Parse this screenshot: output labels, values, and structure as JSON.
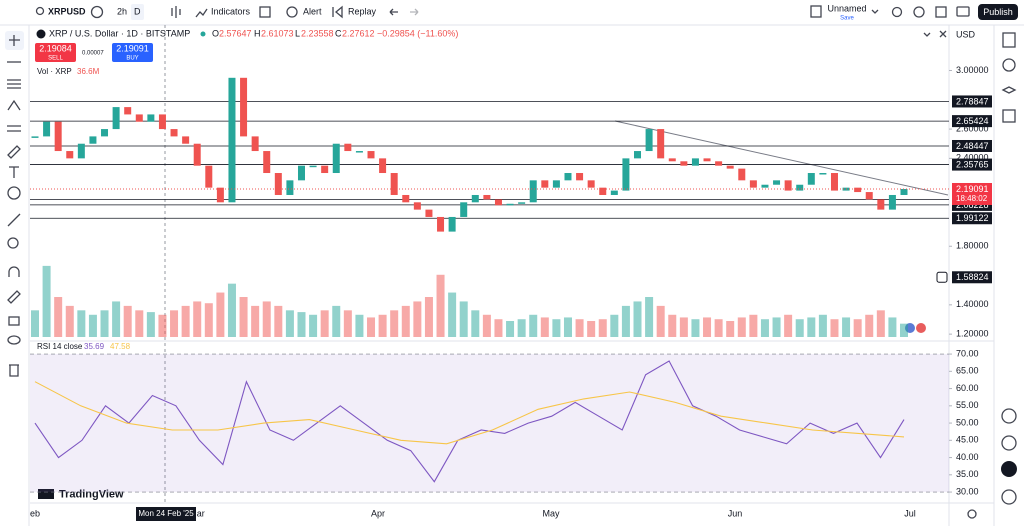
{
  "header": {
    "symbol": "XRPUSD",
    "interval": "2h",
    "interval_active": "D",
    "indicators": "Indicators",
    "alert": "Alert",
    "replay": "Replay",
    "layout_name": "Unnamed",
    "save": "Save",
    "publish": "Publish"
  },
  "legend": {
    "title": "XRP / U.S. Dollar · 1D · BITSTAMP",
    "o_label": "O",
    "open": "2.57647",
    "h_label": "H",
    "high": "2.61073",
    "l_label": "L",
    "low": "2.23558",
    "c_label": "C",
    "close": "2.27612",
    "change": "−0.29854 (−11.60%)",
    "sell_price": "2.19084",
    "sell": "SELL",
    "spread": "0.00007",
    "buy_price": "2.19091",
    "buy": "BUY",
    "volume_label": "Vol · XRP",
    "volume_value": "36.6M"
  },
  "currency": "USD",
  "crosshair_date": "Mon 24 Feb '25",
  "time_labels": [
    "eb",
    "Mar",
    "Apr",
    "May",
    "Jun",
    "Jul"
  ],
  "brand": "TradingView",
  "chart_data": {
    "type": "candlestick",
    "ylim": [
      1.16,
      3.29
    ],
    "yticks": [
      {
        "value": 3,
        "label": "3.00000"
      },
      {
        "value": 2.6,
        "label": "2.60000"
      },
      {
        "value": 2.4,
        "label": "2.40000"
      },
      {
        "value": 1.8,
        "label": "1.80000"
      },
      {
        "value": 1.4,
        "label": "1.40000"
      },
      {
        "value": 1.2,
        "label": "1.20000"
      }
    ],
    "price_lines": [
      2.78847,
      2.65424,
      2.48447,
      2.35765,
      2.12018,
      2.08228,
      1.99122
    ],
    "alert_level": 1.58824,
    "last_price": 2.19091,
    "countdown": "18:48:02",
    "up_color": "#26a69a",
    "down_color": "#ef5350",
    "candles": {
      "close": [
        2.55,
        2.65,
        2.45,
        2.4,
        2.5,
        2.55,
        2.6,
        2.75,
        2.7,
        2.65,
        2.7,
        2.6,
        2.55,
        2.5,
        2.35,
        2.2,
        2.1,
        2.95,
        2.55,
        2.45,
        2.3,
        2.15,
        2.25,
        2.35,
        2.35,
        2.3,
        2.5,
        2.45,
        2.45,
        2.4,
        2.3,
        2.15,
        2.1,
        2.05,
        2.0,
        1.9,
        2.0,
        2.1,
        2.15,
        2.12,
        2.08,
        2.09,
        2.1,
        2.25,
        2.2,
        2.25,
        2.3,
        2.25,
        2.2,
        2.15,
        2.18,
        2.4,
        2.45,
        2.6,
        2.4,
        2.38,
        2.35,
        2.4,
        2.38,
        2.35,
        2.33,
        2.25,
        2.2,
        2.22,
        2.25,
        2.18,
        2.22,
        2.3,
        2.3,
        2.18,
        2.2,
        2.17,
        2.12,
        2.05,
        2.15,
        2.19091
      ]
    },
    "volume": {
      "ylim": [
        0,
        90
      ],
      "values": [
        30,
        80,
        45,
        35,
        30,
        25,
        30,
        40,
        35,
        30,
        28,
        25,
        30,
        35,
        40,
        38,
        50,
        60,
        45,
        35,
        40,
        35,
        30,
        28,
        25,
        30,
        35,
        30,
        25,
        22,
        25,
        30,
        35,
        40,
        45,
        70,
        50,
        40,
        30,
        25,
        20,
        18,
        20,
        25,
        22,
        20,
        22,
        20,
        18,
        20,
        25,
        35,
        40,
        45,
        35,
        25,
        22,
        20,
        22,
        20,
        18,
        22,
        25,
        20,
        22,
        25,
        20,
        22,
        25,
        20,
        22,
        20,
        25,
        30,
        22,
        15
      ]
    },
    "rsi": {
      "title": "RSI 14 close",
      "value": "35.69",
      "ma_value": "47.58",
      "ylim": [
        27.7,
        73.5
      ],
      "band": [
        30,
        70
      ],
      "yticks": [
        {
          "value": 70,
          "label": "70.00"
        },
        {
          "value": 65,
          "label": "65.00"
        },
        {
          "value": 60,
          "label": "60.00"
        },
        {
          "value": 55,
          "label": "55.00"
        },
        {
          "value": 50,
          "label": "50.00"
        },
        {
          "value": 45,
          "label": "45.00"
        },
        {
          "value": 40,
          "label": "40.00"
        },
        {
          "value": 35,
          "label": "35.00"
        },
        {
          "value": 30,
          "label": "30.00"
        }
      ],
      "series": [
        {
          "color": "#7e57c2",
          "values": [
            50,
            40,
            45,
            55,
            50,
            58,
            55,
            45,
            38,
            62,
            48,
            45,
            50,
            55,
            50,
            45,
            42,
            33,
            45,
            48,
            47,
            50,
            52,
            56,
            52,
            48,
            64,
            68,
            55,
            52,
            48,
            46,
            44,
            50,
            47,
            50,
            40,
            51
          ]
        },
        {
          "color": "#f7c548",
          "values": [
            62,
            55,
            50,
            48,
            48,
            50,
            51,
            48,
            45,
            44,
            48,
            54,
            57,
            59,
            56,
            52,
            50,
            48,
            47,
            46
          ]
        }
      ]
    }
  }
}
